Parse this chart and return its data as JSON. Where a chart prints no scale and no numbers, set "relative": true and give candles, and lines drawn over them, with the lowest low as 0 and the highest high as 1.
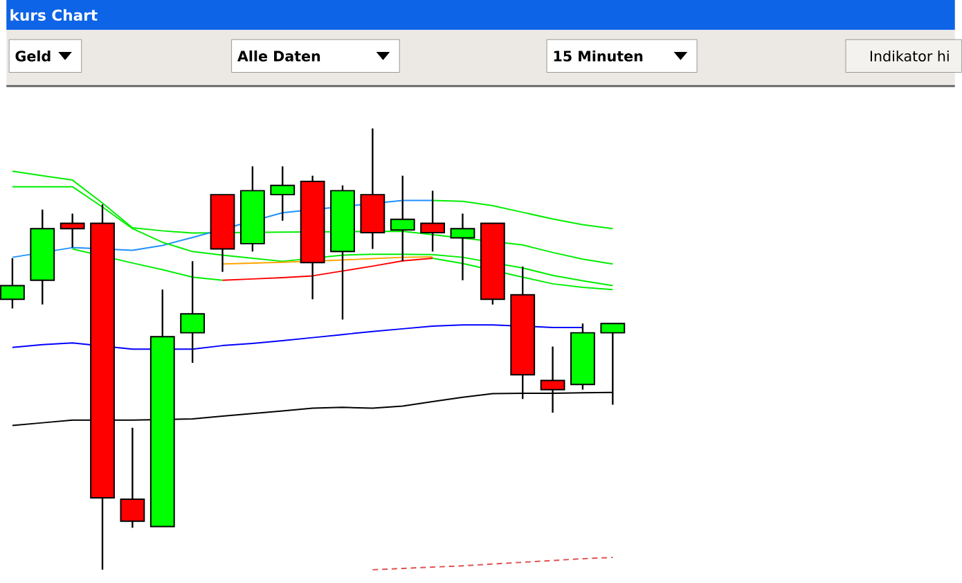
{
  "chart_data": {
    "type": "candlestick",
    "title": "kurs Chart",
    "relative": true,
    "annotations": [
      "Geld",
      "Alle Daten",
      "15 Minuten",
      "Indikator hi"
    ],
    "categories": [
      null,
      null,
      null,
      null,
      null,
      null,
      null,
      null,
      null,
      null,
      null,
      null,
      null,
      null,
      null,
      null,
      null,
      null,
      null,
      null,
      null
    ],
    "ohlc": [
      [
        0.613,
        0.706,
        0.592,
        0.644
      ],
      [
        0.656,
        0.816,
        0.601,
        0.773
      ],
      [
        0.785,
        0.807,
        0.73,
        0.773
      ],
      [
        0.785,
        0.828,
        0.0,
        0.163
      ],
      [
        0.16,
        0.322,
        0.095,
        0.11
      ],
      [
        0.098,
        0.635,
        0.098,
        0.528
      ],
      [
        0.537,
        0.699,
        0.469,
        0.58
      ],
      [
        0.85,
        0.85,
        0.675,
        0.727
      ],
      [
        0.739,
        0.914,
        0.721,
        0.859
      ],
      [
        0.85,
        0.914,
        0.791,
        0.871
      ],
      [
        0.88,
        0.893,
        0.613,
        0.696
      ],
      [
        0.721,
        0.871,
        0.567,
        0.859
      ],
      [
        0.85,
        1.0,
        0.727,
        0.764
      ],
      [
        0.77,
        0.893,
        0.699,
        0.794
      ],
      [
        0.785,
        0.859,
        0.721,
        0.764
      ],
      [
        0.752,
        0.807,
        0.656,
        0.773
      ],
      [
        0.785,
        0.785,
        0.601,
        0.613
      ],
      [
        0.623,
        0.687,
        0.387,
        0.442
      ],
      [
        0.429,
        0.506,
        0.356,
        0.408
      ],
      [
        0.42,
        0.558,
        0.408,
        0.537
      ],
      [
        0.537,
        0.558,
        0.374,
        0.558
      ]
    ],
    "colors": [
      "#00ff00",
      "#00ff00",
      "#ff0000",
      "#ff0000",
      "#ff0000",
      "#00ff00",
      "#00ff00",
      "#ff0000",
      "#00ff00",
      "#00ff00",
      "#ff0000",
      "#00ff00",
      "#ff0000",
      "#00ff00",
      "#ff0000",
      "#00ff00",
      "#ff0000",
      "#ff0000",
      "#ff0000",
      "#00ff00",
      "#00ff00"
    ],
    "series": [
      {
        "type": "line",
        "color": "#0000ff",
        "values": [
          0.504,
          0.51,
          0.514,
          null,
          0.5,
          null,
          0.5,
          0.508,
          0.513,
          0.519,
          0.526,
          0.533,
          0.54,
          0.546,
          0.552,
          0.555,
          0.555,
          null,
          0.549,
          0.549,
          null
        ]
      },
      {
        "type": "line",
        "color": "#000000",
        "values": [
          0.327,
          0.333,
          0.339,
          null,
          0.339,
          null,
          0.342,
          0.348,
          0.354,
          0.36,
          0.366,
          0.368,
          0.366,
          0.371,
          0.381,
          0.391,
          0.399,
          0.4,
          0.4,
          0.401,
          0.402
        ]
      },
      {
        "type": "line",
        "color": "#e05050",
        "line_style": "dashed",
        "values": [
          null,
          null,
          null,
          null,
          null,
          null,
          null,
          null,
          null,
          null,
          null,
          null,
          0.0,
          0.003,
          0.006,
          0.009,
          0.013,
          0.017,
          0.021,
          0.025,
          0.028
        ]
      },
      {
        "type": "line",
        "color": "#00ee00",
        "values": [
          0.903,
          0.893,
          0.883,
          0.831,
          0.775,
          0.768,
          0.763,
          null,
          null,
          0.765,
          null,
          null,
          null,
          0.767,
          null,
          null,
          null,
          0.736,
          0.719,
          0.704,
          0.693
        ]
      },
      {
        "type": "line",
        "color": "#1e90ff",
        "values": [
          0.708,
          null,
          0.73,
          null,
          0.724,
          0.735,
          0.753,
          null,
          null,
          0.809,
          null,
          null,
          null,
          0.837,
          0.837,
          null,
          null,
          null,
          null,
          null,
          null
        ]
      },
      {
        "type": "line",
        "color": "#00ee00",
        "values": [
          null,
          null,
          null,
          null,
          null,
          null,
          null,
          null,
          null,
          null,
          null,
          null,
          null,
          null,
          0.837,
          0.835,
          0.825,
          0.81,
          0.795,
          0.782,
          0.773
        ]
      },
      {
        "type": "line",
        "color": "#00ee00",
        "values": [
          0.868,
          0.868,
          0.868,
          0.822,
          0.773,
          0.742,
          0.721,
          0.713,
          0.706,
          0.699,
          null,
          0.713,
          0.715,
          0.715,
          0.714,
          0.708,
          null,
          0.684,
          0.667,
          0.655,
          0.644
        ]
      },
      {
        "type": "line",
        "color": "#00ee00",
        "values": [
          null,
          null,
          0.727,
          null,
          0.695,
          0.68,
          0.663,
          0.656,
          null,
          null,
          null,
          null,
          null,
          null,
          null,
          null,
          null,
          null,
          null,
          null,
          null
        ]
      },
      {
        "type": "line",
        "color": "#ff0000",
        "values": [
          null,
          null,
          null,
          null,
          null,
          null,
          null,
          0.656,
          0.659,
          0.662,
          0.666,
          0.677,
          0.688,
          0.7,
          0.706,
          null,
          null,
          null,
          null,
          null,
          null
        ]
      },
      {
        "type": "line",
        "color": "#ffa500",
        "values": [
          null,
          null,
          null,
          null,
          null,
          null,
          null,
          0.693,
          0.695,
          0.697,
          null,
          0.702,
          0.705,
          0.708,
          0.709,
          null,
          null,
          null,
          null,
          null,
          null
        ]
      },
      {
        "type": "line",
        "color": "#00ee00",
        "values": [
          null,
          null,
          null,
          null,
          null,
          null,
          null,
          null,
          null,
          null,
          null,
          null,
          null,
          null,
          0.706,
          0.694,
          null,
          0.663,
          0.648,
          0.64,
          0.635
        ]
      }
    ]
  }
}
